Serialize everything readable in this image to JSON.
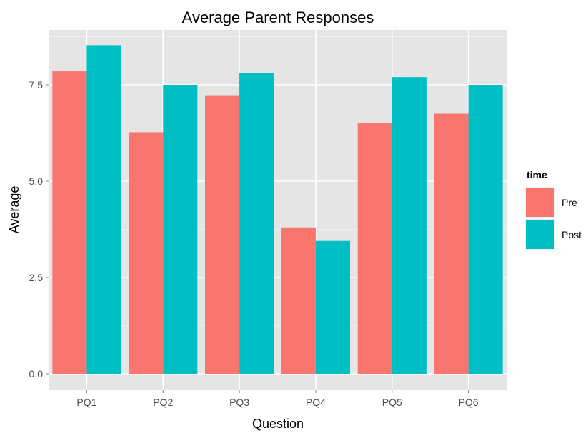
{
  "chart_data": {
    "type": "bar",
    "title": "Average Parent Responses",
    "xlabel": "Question",
    "ylabel": "Average",
    "categories": [
      "PQ1",
      "PQ2",
      "PQ3",
      "PQ4",
      "PQ5",
      "PQ6"
    ],
    "series": [
      {
        "name": "Pre",
        "color": "#F8766D",
        "values": [
          7.85,
          6.27,
          7.23,
          3.8,
          6.5,
          6.75
        ]
      },
      {
        "name": "Post",
        "color": "#00BFC4",
        "values": [
          8.53,
          7.5,
          7.8,
          3.45,
          7.7,
          7.5
        ]
      }
    ],
    "ylim": [
      0,
      9
    ],
    "y_ticks": [
      0.0,
      2.5,
      5.0,
      7.5
    ],
    "y_tick_labels": [
      "0.0",
      "2.5",
      "5.0",
      "7.5"
    ],
    "grid": true,
    "panel_background": "#E5E5E5",
    "legend": {
      "title": "time",
      "position": "right",
      "entries": [
        "Pre",
        "Post"
      ]
    }
  }
}
